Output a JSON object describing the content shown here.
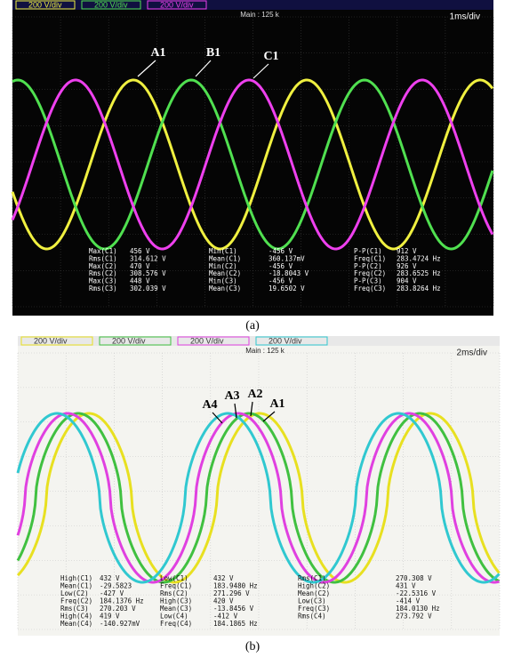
{
  "panels": [
    {
      "caption": "(a)",
      "main": "Main : 125 k",
      "timebase": "1ms/div",
      "channels": [
        "200 V/div",
        "200 V/div",
        "200 V/div"
      ],
      "labels": [
        "A1",
        "B1",
        "C1"
      ],
      "measurements": [
        [
          [
            "Max(C1)",
            "456 V"
          ],
          [
            "Min(C1)",
            "-456 V"
          ],
          [
            "P-P(C1)",
            "912 V"
          ]
        ],
        [
          [
            "Rms(C1)",
            "314.612 V"
          ],
          [
            "Mean(C1)",
            "360.137mV"
          ],
          [
            "Freq(C1)",
            "283.4724 Hz"
          ]
        ],
        [
          [
            "Max(C2)",
            "470 V"
          ],
          [
            "Min(C2)",
            "-456 V"
          ],
          [
            "P-P(C2)",
            "926 V"
          ]
        ],
        [
          [
            "Rms(C2)",
            "308.576 V"
          ],
          [
            "Mean(C2)",
            "-18.8043 V"
          ],
          [
            "Freq(C2)",
            "283.6525 Hz"
          ]
        ],
        [
          [
            "Max(C3)",
            "448 V"
          ],
          [
            "Min(C3)",
            "-456 V"
          ],
          [
            "P-P(C3)",
            "904 V"
          ]
        ],
        [
          [
            "Rms(C3)",
            "302.039 V"
          ],
          [
            "Mean(C3)",
            "19.6502 V"
          ],
          [
            "Freq(C3)",
            "283.8264 Hz"
          ]
        ]
      ]
    },
    {
      "caption": "(b)",
      "main": "Main : 125 k",
      "timebase": "2ms/div",
      "channels": [
        "200 V/div",
        "200 V/div",
        "200 V/div",
        "200 V/div"
      ],
      "labels": [
        "A4",
        "A3",
        "A2",
        "A1"
      ],
      "measurements": [
        [
          [
            "High(C1)",
            "432 V"
          ],
          [
            "Low(C1)",
            "432 V"
          ],
          [
            "Rms(C1)",
            "270.308 V"
          ]
        ],
        [
          [
            "Mean(C1)",
            "-29.5823"
          ],
          [
            "Freq(C1)",
            "183.9480 Hz"
          ],
          [
            "High(C2)",
            "431 V"
          ]
        ],
        [
          [
            "Low(C2)",
            "-427 V"
          ],
          [
            "Rms(C2)",
            "271.296 V"
          ],
          [
            "Mean(C2)",
            "-22.5316 V"
          ]
        ],
        [
          [
            "Freq(C2)",
            "184.1376 Hz"
          ],
          [
            "High(C3)",
            "420 V"
          ],
          [
            "Low(C3)",
            "-414 V"
          ]
        ],
        [
          [
            "Rms(C3)",
            "270.203 V"
          ],
          [
            "Mean(C3)",
            "-13.8456 V"
          ],
          [
            "Freq(C3)",
            "184.0130 Hz"
          ]
        ],
        [
          [
            "High(C4)",
            "419 V"
          ],
          [
            "Low(C4)",
            "-412 V"
          ],
          [
            "Rms(C4)",
            "273.792 V"
          ]
        ],
        [
          [
            "Mean(C4)",
            "-140.927mV"
          ],
          [
            "Freq(C4)",
            "184.1865 Hz"
          ],
          [
            "",
            ""
          ]
        ]
      ]
    }
  ]
}
